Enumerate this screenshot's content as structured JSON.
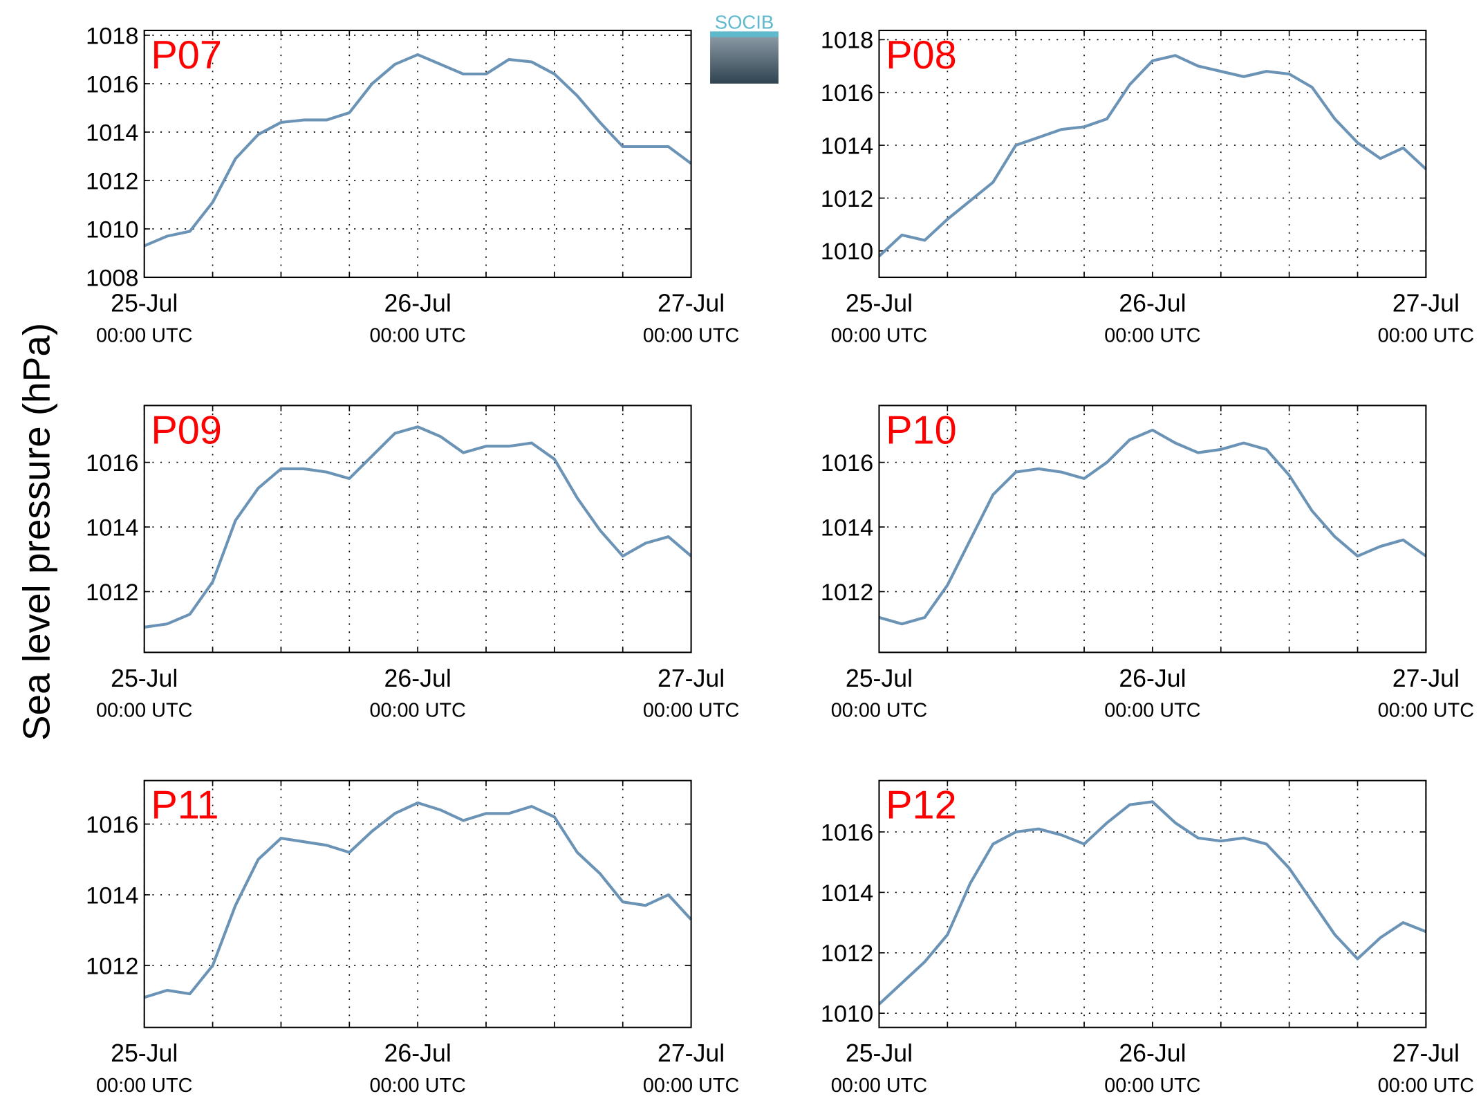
{
  "ylabel": "Sea level pressure (hPa)",
  "logo": "SOCIB",
  "chart_data": [
    {
      "type": "line",
      "label": "P07",
      "color": "#6b93b6",
      "grid": true,
      "x": [
        "25-Jul 00:00",
        "25-Jul 02:00",
        "25-Jul 04:00",
        "25-Jul 06:00",
        "25-Jul 08:00",
        "25-Jul 10:00",
        "25-Jul 12:00",
        "25-Jul 14:00",
        "25-Jul 16:00",
        "25-Jul 18:00",
        "25-Jul 20:00",
        "25-Jul 22:00",
        "26-Jul 00:00",
        "26-Jul 02:00",
        "26-Jul 04:00",
        "26-Jul 06:00",
        "26-Jul 08:00",
        "26-Jul 10:00",
        "26-Jul 12:00",
        "26-Jul 14:00",
        "26-Jul 16:00",
        "26-Jul 18:00",
        "26-Jul 20:00",
        "26-Jul 22:00",
        "27-Jul 00:00"
      ],
      "values": [
        1009.3,
        1009.7,
        1009.9,
        1011.1,
        1012.9,
        1013.9,
        1014.4,
        1014.5,
        1014.5,
        1014.8,
        1016.0,
        1016.8,
        1017.2,
        1016.8,
        1016.4,
        1016.4,
        1017.0,
        1016.9,
        1016.4,
        1015.5,
        1014.4,
        1013.4,
        1013.4,
        1013.4,
        1012.7
      ],
      "xlim": [
        "25-Jul 00:00",
        "27-Jul 00:00"
      ],
      "ylim": [
        1008,
        1018.2
      ],
      "yticks": [
        1008,
        1010,
        1012,
        1014,
        1016,
        1018
      ],
      "xticks": [
        {
          "value": "25-Jul 00:00",
          "label": [
            "25-Jul",
            "00:00 UTC"
          ]
        },
        {
          "value": "25-Jul 06:00",
          "label": null
        },
        {
          "value": "25-Jul 12:00",
          "label": null
        },
        {
          "value": "25-Jul 18:00",
          "label": null
        },
        {
          "value": "26-Jul 00:00",
          "label": [
            "26-Jul",
            "00:00 UTC"
          ]
        },
        {
          "value": "26-Jul 06:00",
          "label": null
        },
        {
          "value": "26-Jul 12:00",
          "label": null
        },
        {
          "value": "26-Jul 18:00",
          "label": null
        },
        {
          "value": "27-Jul 00:00",
          "label": [
            "27-Jul",
            "00:00 UTC"
          ]
        }
      ]
    },
    {
      "type": "line",
      "label": "P08",
      "color": "#6b93b6",
      "grid": true,
      "x": [
        "25-Jul 00:00",
        "25-Jul 02:00",
        "25-Jul 04:00",
        "25-Jul 06:00",
        "25-Jul 08:00",
        "25-Jul 10:00",
        "25-Jul 12:00",
        "25-Jul 14:00",
        "25-Jul 16:00",
        "25-Jul 18:00",
        "25-Jul 20:00",
        "25-Jul 22:00",
        "26-Jul 00:00",
        "26-Jul 02:00",
        "26-Jul 04:00",
        "26-Jul 06:00",
        "26-Jul 08:00",
        "26-Jul 10:00",
        "26-Jul 12:00",
        "26-Jul 14:00",
        "26-Jul 16:00",
        "26-Jul 18:00",
        "26-Jul 20:00",
        "26-Jul 22:00",
        "27-Jul 00:00"
      ],
      "values": [
        1009.8,
        1010.6,
        1010.4,
        1011.2,
        1011.9,
        1012.6,
        1014.0,
        1014.3,
        1014.6,
        1014.7,
        1015.0,
        1016.3,
        1017.2,
        1017.4,
        1017.0,
        1016.8,
        1016.6,
        1016.8,
        1016.7,
        1016.2,
        1015.0,
        1014.1,
        1013.5,
        1013.9,
        1013.1
      ],
      "xlim": [
        "25-Jul 00:00",
        "27-Jul 00:00"
      ],
      "ylim": [
        1009,
        1018.35
      ],
      "yticks": [
        1010,
        1012,
        1014,
        1016,
        1018
      ],
      "xticks": [
        {
          "value": "25-Jul 00:00",
          "label": [
            "25-Jul",
            "00:00 UTC"
          ]
        },
        {
          "value": "25-Jul 06:00",
          "label": null
        },
        {
          "value": "25-Jul 12:00",
          "label": null
        },
        {
          "value": "25-Jul 18:00",
          "label": null
        },
        {
          "value": "26-Jul 00:00",
          "label": [
            "26-Jul",
            "00:00 UTC"
          ]
        },
        {
          "value": "26-Jul 06:00",
          "label": null
        },
        {
          "value": "26-Jul 12:00",
          "label": null
        },
        {
          "value": "26-Jul 18:00",
          "label": null
        },
        {
          "value": "27-Jul 00:00",
          "label": [
            "27-Jul",
            "00:00 UTC"
          ]
        }
      ]
    },
    {
      "type": "line",
      "label": "P09",
      "color": "#6b93b6",
      "grid": true,
      "x": [
        "25-Jul 00:00",
        "25-Jul 02:00",
        "25-Jul 04:00",
        "25-Jul 06:00",
        "25-Jul 08:00",
        "25-Jul 10:00",
        "25-Jul 12:00",
        "25-Jul 14:00",
        "25-Jul 16:00",
        "25-Jul 18:00",
        "25-Jul 20:00",
        "25-Jul 22:00",
        "26-Jul 00:00",
        "26-Jul 02:00",
        "26-Jul 04:00",
        "26-Jul 06:00",
        "26-Jul 08:00",
        "26-Jul 10:00",
        "26-Jul 12:00",
        "26-Jul 14:00",
        "26-Jul 16:00",
        "26-Jul 18:00",
        "26-Jul 20:00",
        "26-Jul 22:00",
        "27-Jul 00:00"
      ],
      "values": [
        1010.9,
        1011.0,
        1011.3,
        1012.3,
        1014.2,
        1015.2,
        1015.8,
        1015.8,
        1015.7,
        1015.5,
        1016.2,
        1016.9,
        1017.1,
        1016.8,
        1016.3,
        1016.5,
        1016.5,
        1016.6,
        1016.1,
        1014.9,
        1013.9,
        1013.1,
        1013.5,
        1013.7,
        1013.1
      ],
      "xlim": [
        "25-Jul 00:00",
        "27-Jul 00:00"
      ],
      "ylim": [
        1010.12,
        1017.76
      ],
      "yticks": [
        1012,
        1014,
        1016
      ],
      "xticks": [
        {
          "value": "25-Jul 00:00",
          "label": [
            "25-Jul",
            "00:00 UTC"
          ]
        },
        {
          "value": "25-Jul 06:00",
          "label": null
        },
        {
          "value": "25-Jul 12:00",
          "label": null
        },
        {
          "value": "25-Jul 18:00",
          "label": null
        },
        {
          "value": "26-Jul 00:00",
          "label": [
            "26-Jul",
            "00:00 UTC"
          ]
        },
        {
          "value": "26-Jul 06:00",
          "label": null
        },
        {
          "value": "26-Jul 12:00",
          "label": null
        },
        {
          "value": "26-Jul 18:00",
          "label": null
        },
        {
          "value": "27-Jul 00:00",
          "label": [
            "27-Jul",
            "00:00 UTC"
          ]
        }
      ]
    },
    {
      "type": "line",
      "label": "P10",
      "color": "#6b93b6",
      "grid": true,
      "x": [
        "25-Jul 00:00",
        "25-Jul 02:00",
        "25-Jul 04:00",
        "25-Jul 06:00",
        "25-Jul 08:00",
        "25-Jul 10:00",
        "25-Jul 12:00",
        "25-Jul 14:00",
        "25-Jul 16:00",
        "25-Jul 18:00",
        "25-Jul 20:00",
        "25-Jul 22:00",
        "26-Jul 00:00",
        "26-Jul 02:00",
        "26-Jul 04:00",
        "26-Jul 06:00",
        "26-Jul 08:00",
        "26-Jul 10:00",
        "26-Jul 12:00",
        "26-Jul 14:00",
        "26-Jul 16:00",
        "26-Jul 18:00",
        "26-Jul 20:00",
        "26-Jul 22:00",
        "27-Jul 00:00"
      ],
      "values": [
        1011.2,
        1011.0,
        1011.2,
        1012.2,
        1013.6,
        1015.0,
        1015.7,
        1015.8,
        1015.7,
        1015.5,
        1016.0,
        1016.7,
        1017.0,
        1016.6,
        1016.3,
        1016.4,
        1016.6,
        1016.4,
        1015.6,
        1014.5,
        1013.7,
        1013.1,
        1013.4,
        1013.6,
        1013.1
      ],
      "xlim": [
        "25-Jul 00:00",
        "27-Jul 00:00"
      ],
      "ylim": [
        1010.12,
        1017.76
      ],
      "yticks": [
        1012,
        1014,
        1016
      ],
      "xticks": [
        {
          "value": "25-Jul 00:00",
          "label": [
            "25-Jul",
            "00:00 UTC"
          ]
        },
        {
          "value": "25-Jul 06:00",
          "label": null
        },
        {
          "value": "25-Jul 12:00",
          "label": null
        },
        {
          "value": "25-Jul 18:00",
          "label": null
        },
        {
          "value": "26-Jul 00:00",
          "label": [
            "26-Jul",
            "00:00 UTC"
          ]
        },
        {
          "value": "26-Jul 06:00",
          "label": null
        },
        {
          "value": "26-Jul 12:00",
          "label": null
        },
        {
          "value": "26-Jul 18:00",
          "label": null
        },
        {
          "value": "27-Jul 00:00",
          "label": [
            "27-Jul",
            "00:00 UTC"
          ]
        }
      ]
    },
    {
      "type": "line",
      "label": "P11",
      "color": "#6b93b6",
      "grid": true,
      "x": [
        "25-Jul 00:00",
        "25-Jul 02:00",
        "25-Jul 04:00",
        "25-Jul 06:00",
        "25-Jul 08:00",
        "25-Jul 10:00",
        "25-Jul 12:00",
        "25-Jul 14:00",
        "25-Jul 16:00",
        "25-Jul 18:00",
        "25-Jul 20:00",
        "25-Jul 22:00",
        "26-Jul 00:00",
        "26-Jul 02:00",
        "26-Jul 04:00",
        "26-Jul 06:00",
        "26-Jul 08:00",
        "26-Jul 10:00",
        "26-Jul 12:00",
        "26-Jul 14:00",
        "26-Jul 16:00",
        "26-Jul 18:00",
        "26-Jul 20:00",
        "26-Jul 22:00",
        "27-Jul 00:00"
      ],
      "values": [
        1011.1,
        1011.3,
        1011.2,
        1012.0,
        1013.7,
        1015.0,
        1015.6,
        1015.5,
        1015.4,
        1015.2,
        1015.8,
        1016.3,
        1016.6,
        1016.4,
        1016.1,
        1016.3,
        1016.3,
        1016.5,
        1016.2,
        1015.2,
        1014.6,
        1013.8,
        1013.7,
        1014.0,
        1013.3
      ],
      "xlim": [
        "25-Jul 00:00",
        "27-Jul 00:00"
      ],
      "ylim": [
        1010.25,
        1017.23
      ],
      "yticks": [
        1012,
        1014,
        1016
      ],
      "xticks": [
        {
          "value": "25-Jul 00:00",
          "label": [
            "25-Jul",
            "00:00 UTC"
          ]
        },
        {
          "value": "25-Jul 06:00",
          "label": null
        },
        {
          "value": "25-Jul 12:00",
          "label": null
        },
        {
          "value": "25-Jul 18:00",
          "label": null
        },
        {
          "value": "26-Jul 00:00",
          "label": [
            "26-Jul",
            "00:00 UTC"
          ]
        },
        {
          "value": "26-Jul 06:00",
          "label": null
        },
        {
          "value": "26-Jul 12:00",
          "label": null
        },
        {
          "value": "26-Jul 18:00",
          "label": null
        },
        {
          "value": "27-Jul 00:00",
          "label": [
            "27-Jul",
            "00:00 UTC"
          ]
        }
      ]
    },
    {
      "type": "line",
      "label": "P12",
      "color": "#6b93b6",
      "grid": true,
      "x": [
        "25-Jul 00:00",
        "25-Jul 02:00",
        "25-Jul 04:00",
        "25-Jul 06:00",
        "25-Jul 08:00",
        "25-Jul 10:00",
        "25-Jul 12:00",
        "25-Jul 14:00",
        "25-Jul 16:00",
        "25-Jul 18:00",
        "25-Jul 20:00",
        "25-Jul 22:00",
        "26-Jul 00:00",
        "26-Jul 02:00",
        "26-Jul 04:00",
        "26-Jul 06:00",
        "26-Jul 08:00",
        "26-Jul 10:00",
        "26-Jul 12:00",
        "26-Jul 14:00",
        "26-Jul 16:00",
        "26-Jul 18:00",
        "26-Jul 20:00",
        "26-Jul 22:00",
        "27-Jul 00:00"
      ],
      "values": [
        1010.3,
        1011.0,
        1011.7,
        1012.6,
        1014.3,
        1015.6,
        1016.0,
        1016.1,
        1015.9,
        1015.6,
        1016.3,
        1016.9,
        1017.0,
        1016.3,
        1015.8,
        1015.7,
        1015.8,
        1015.6,
        1014.8,
        1013.7,
        1012.6,
        1011.8,
        1012.5,
        1013.0,
        1012.7
      ],
      "xlim": [
        "25-Jul 00:00",
        "27-Jul 00:00"
      ],
      "ylim": [
        1009.53,
        1017.7
      ],
      "yticks": [
        1010,
        1012,
        1014,
        1016
      ],
      "xticks": [
        {
          "value": "25-Jul 00:00",
          "label": [
            "25-Jul",
            "00:00 UTC"
          ]
        },
        {
          "value": "25-Jul 06:00",
          "label": null
        },
        {
          "value": "25-Jul 12:00",
          "label": null
        },
        {
          "value": "25-Jul 18:00",
          "label": null
        },
        {
          "value": "26-Jul 00:00",
          "label": [
            "26-Jul",
            "00:00 UTC"
          ]
        },
        {
          "value": "26-Jul 06:00",
          "label": null
        },
        {
          "value": "26-Jul 12:00",
          "label": null
        },
        {
          "value": "26-Jul 18:00",
          "label": null
        },
        {
          "value": "27-Jul 00:00",
          "label": [
            "27-Jul",
            "00:00 UTC"
          ]
        }
      ]
    }
  ]
}
